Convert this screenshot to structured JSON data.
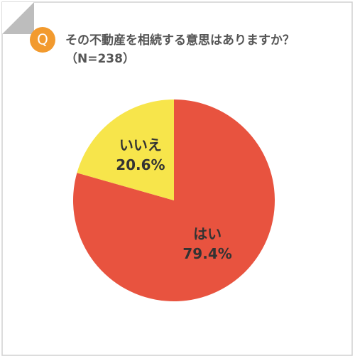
{
  "badge": "Q",
  "chart_data": {
    "type": "pie",
    "title": "その不動産を相続する意思はありますか？",
    "subtitle": "（N=238）",
    "categories": [
      "はい",
      "いいえ"
    ],
    "values": [
      79.4,
      20.6
    ],
    "value_labels": [
      "79.4%",
      "20.6%"
    ],
    "colors": [
      "#e8533f",
      "#f7e54b"
    ]
  }
}
